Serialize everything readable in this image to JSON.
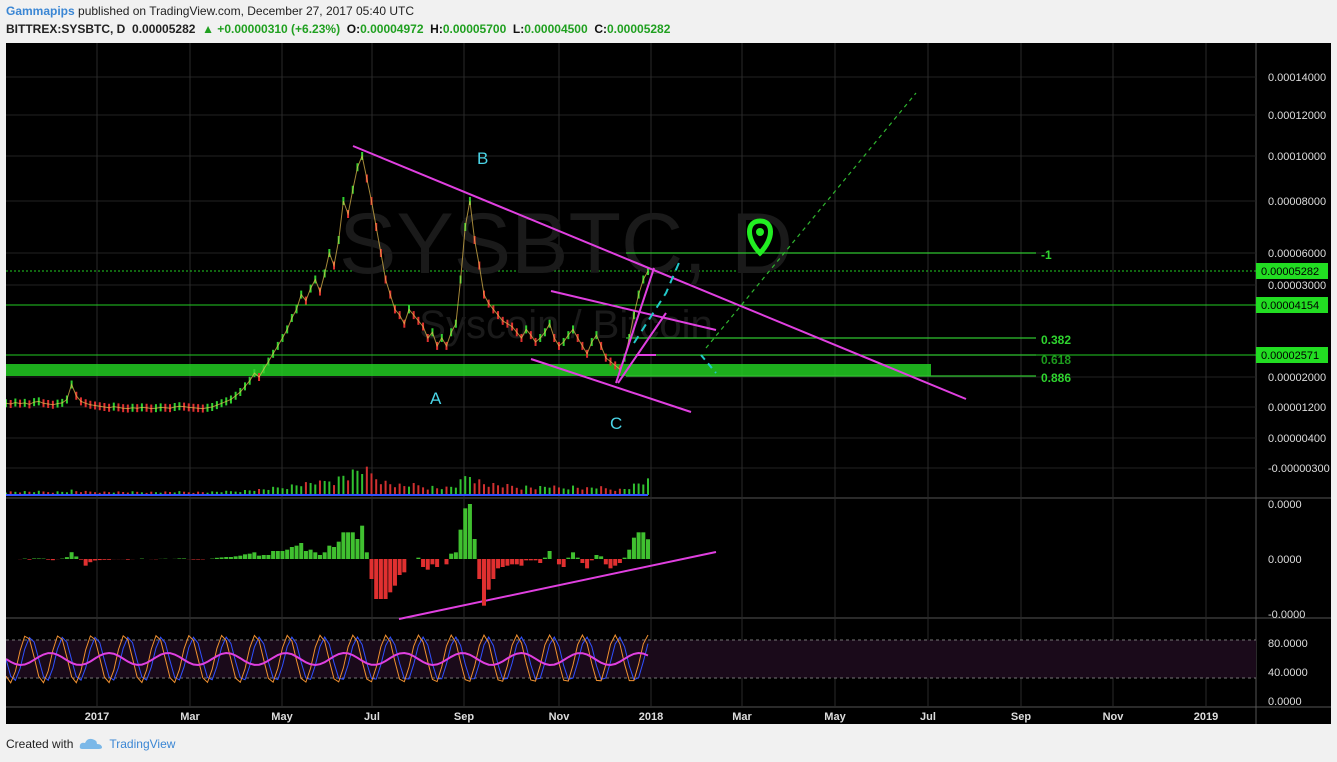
{
  "header": {
    "author": "Gammapips",
    "published": " published on TradingView.com, December 27, 2017 05:40 UTC",
    "symbol": "BITTREX:SYSBTC, D",
    "last": "0.00005282",
    "change": "▲ +0.00000310 (+6.23%)",
    "o_label": "O:",
    "o": "0.00004972",
    "h_label": "H:",
    "h": "0.00005700",
    "l_label": "L:",
    "l": "0.00004500",
    "c_label": "C:",
    "c": "0.00005282"
  },
  "watermark": {
    "symbol": "SYSBTC, D",
    "name": "Syscoin / Bitcoin"
  },
  "footer": {
    "created_with": "Created with",
    "brand": "TradingView"
  },
  "chart_data": {
    "type": "line",
    "title": "",
    "xlabel": "",
    "ylabel": "",
    "x_ticks": [
      "2017",
      "Mar",
      "May",
      "Jul",
      "Sep",
      "Nov",
      "2018",
      "Mar",
      "May",
      "Jul",
      "Sep",
      "Nov",
      "2019"
    ],
    "y_ticks": [
      "0.00014000",
      "0.00012000",
      "0.00010000",
      "0.00008000",
      "0.00006000",
      "0.00003000",
      "0.00002000",
      "0.00001200",
      "0.00000400",
      "-0.00000300"
    ],
    "ylim": [
      -3e-06,
      0.00014
    ],
    "price_tags": [
      "0.00005282",
      "0.00004154",
      "0.00002571"
    ],
    "fib_levels": [
      {
        "label": "-1",
        "value": 6e-05
      },
      {
        "label": "0.382",
        "value": 3e-05
      },
      {
        "label": "0.618",
        "value": 2.5e-05
      },
      {
        "label": "0.886",
        "value": 2.1e-05
      }
    ],
    "wave_labels": [
      "A",
      "B",
      "C"
    ],
    "series": [
      {
        "values": [
          1.3e-05,
          1.28e-05,
          1.32e-05,
          1.29e-05,
          1.31e-05,
          1.27e-05,
          1.33e-05,
          1.35e-05,
          1.3e-05,
          1.28e-05,
          1.26e-05,
          1.29e-05,
          1.31e-05,
          1.4e-05,
          1.8e-05,
          1.5e-05,
          1.35e-05,
          1.3e-05,
          1.26e-05,
          1.24e-05,
          1.22e-05,
          1.2e-05,
          1.18e-05,
          1.21e-05,
          1.19e-05,
          1.17e-05,
          1.16e-05,
          1.18e-05,
          1.17e-05,
          1.19e-05,
          1.18e-05,
          1.16e-05,
          1.17e-05,
          1.19e-05,
          1.18e-05,
          1.17e-05,
          1.2e-05,
          1.22e-05,
          1.21e-05,
          1.19e-05,
          1.18e-05,
          1.17e-05,
          1.16e-05,
          1.18e-05,
          1.2e-05,
          1.25e-05,
          1.3e-05,
          1.35e-05,
          1.4e-05,
          1.5e-05,
          1.6e-05,
          1.75e-05,
          1.9e-05,
          2.1e-05,
          2e-05,
          2.2e-05,
          2.4e-05,
          2.6e-05,
          2.8e-05,
          3e-05,
          3.3e-05,
          3.7e-05,
          4e-05,
          4.5e-05,
          4.3e-05,
          4.7e-05,
          5e-05,
          4.6e-05,
          5.2e-05,
          6e-05,
          5.5e-05,
          6.5e-05,
          8e-05,
          7.5e-05,
          8.5e-05,
          9.5e-05,
          0.0001,
          9e-05,
          8e-05,
          7e-05,
          6e-05,
          5e-05,
          4.5e-05,
          4e-05,
          3.8e-05,
          3.5e-05,
          4e-05,
          3.8e-05,
          3.6e-05,
          3.4e-05,
          3e-05,
          3.2e-05,
          2.8e-05,
          3e-05,
          2.8e-05,
          3.2e-05,
          3.5e-05,
          5e-05,
          7e-05,
          8e-05,
          6.5e-05,
          5.5e-05,
          4.5e-05,
          4.2e-05,
          4e-05,
          3.8e-05,
          3.6e-05,
          3.5e-05,
          3.4e-05,
          3.2e-05,
          3e-05,
          3.3e-05,
          3.1e-05,
          2.9e-05,
          3e-05,
          3.2e-05,
          3.5e-05,
          3e-05,
          2.8e-05,
          2.9e-05,
          3.1e-05,
          3.3e-05,
          3e-05,
          2.8e-05,
          2.6e-05,
          2.9e-05,
          3.1e-05,
          2.8e-05,
          2.5e-05,
          2.4e-05,
          2.3e-05,
          2.2e-05,
          2.5e-05,
          3e-05,
          3.8e-05,
          4.5e-05,
          5e-05,
          5.28e-05
        ]
      }
    ]
  }
}
